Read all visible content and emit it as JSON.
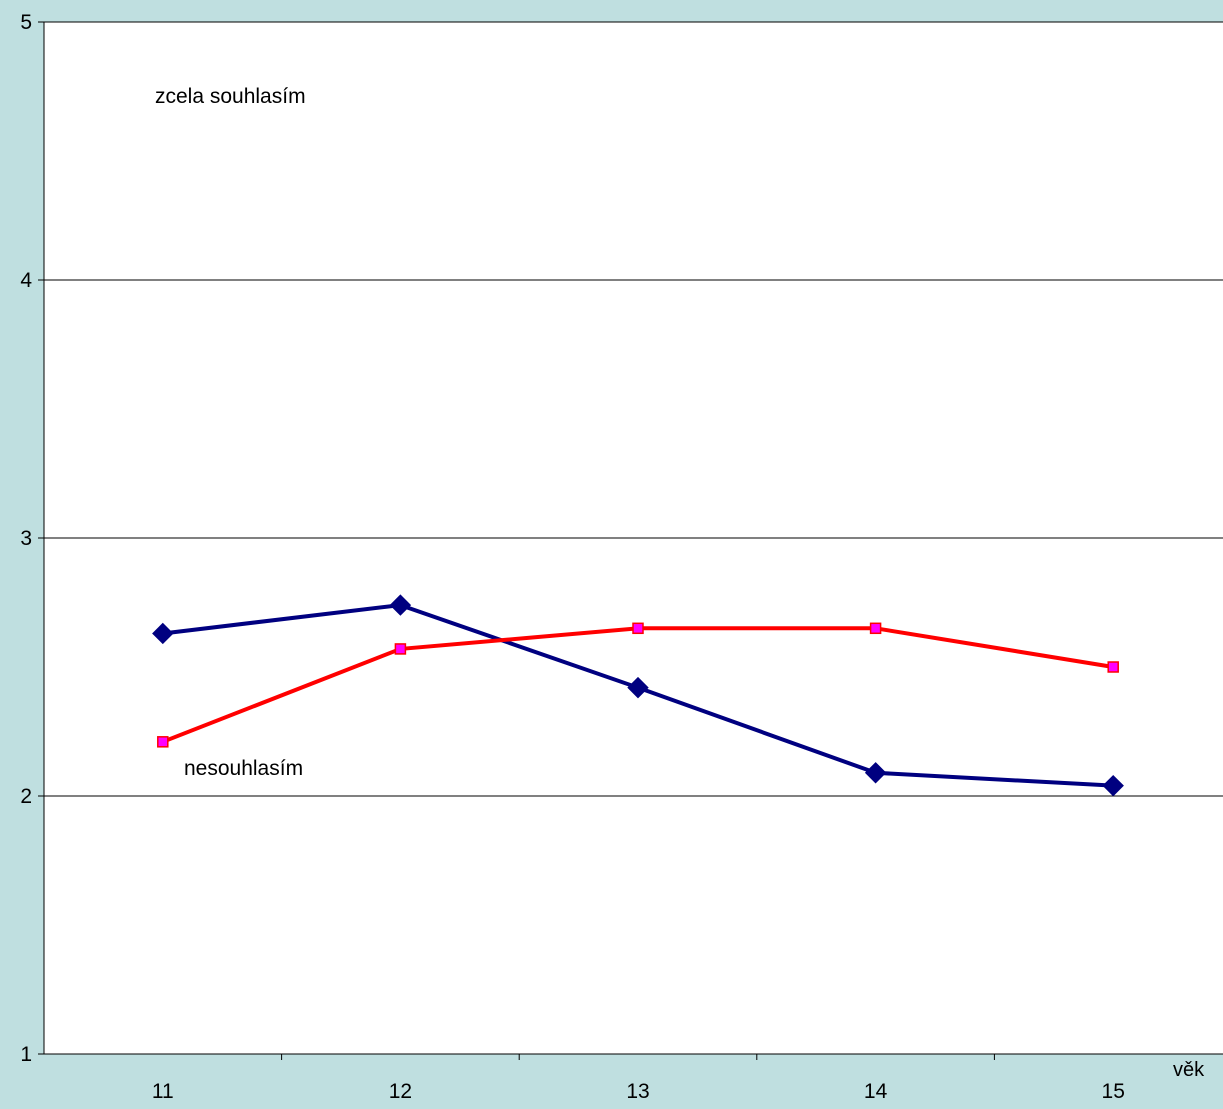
{
  "colors": {
    "background": "#bfdfe0",
    "plot_area": "#ffffff",
    "gridline": "#000000",
    "axis": "#000000"
  },
  "chart_data": {
    "type": "line",
    "title": "",
    "xlabel": "věk",
    "ylabel": "",
    "categories": [
      "11",
      "12",
      "13",
      "14",
      "15"
    ],
    "ylim": [
      1,
      5
    ],
    "yticks": [
      "1",
      "2",
      "3",
      "4",
      "5"
    ],
    "grid": true,
    "legend": "none",
    "annotations": {
      "top": "zcela souhlasím",
      "bottom": "nesouhlasím"
    },
    "series": [
      {
        "color": "#000080",
        "marker": "diamond",
        "values": [
          2.63,
          2.74,
          2.42,
          2.09,
          2.04
        ]
      },
      {
        "color": "#ff0000",
        "marker": "square",
        "marker_fill": "#ff00ff",
        "values": [
          2.21,
          2.57,
          2.65,
          2.65,
          2.5
        ]
      }
    ]
  }
}
